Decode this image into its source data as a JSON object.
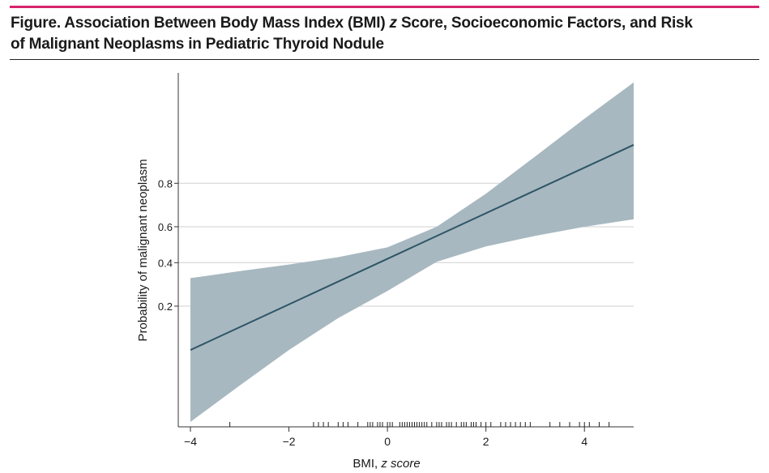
{
  "header": {
    "title_prefix": "Figure. Association Between Body Mass Index (BMI) ",
    "title_italic": "z",
    "title_suffix_line1": " Score, Socioeconomic Factors, and Risk",
    "title_line2": "of Malignant Neoplasms in Pediatric Thyroid Nodule"
  },
  "colors": {
    "accent_rule": "#d6246e",
    "band": "#a8b8c0",
    "line": "#2d5566",
    "grid": "#d0d0d0"
  },
  "chart_data": {
    "type": "line",
    "xlabel_prefix": "BMI, ",
    "xlabel_italic": "z score",
    "ylabel": "Probability of malignant neoplasm",
    "x_ticks": [
      -4,
      -2,
      0,
      2,
      4
    ],
    "x_tick_labels": [
      "−4",
      "−2",
      "0",
      "2",
      "4"
    ],
    "y_ticks": [
      0.2,
      0.4,
      0.6,
      0.8
    ],
    "y_tick_labels": [
      "0.2",
      "0.4",
      "0.6",
      "0.8"
    ],
    "xlim": [
      -4.2,
      5
    ],
    "ylim": [
      0,
      1
    ],
    "y_scale": "logit",
    "grid": "horizontal",
    "fit_line": {
      "x": [
        -4,
        5
      ],
      "y": [
        0.085,
        0.905
      ]
    },
    "ci_band": {
      "x": [
        -4,
        -3,
        -2,
        -1,
        0,
        1,
        2,
        3,
        4,
        5
      ],
      "upper": [
        0.32,
        0.355,
        0.39,
        0.43,
        0.485,
        0.6,
        0.76,
        0.88,
        0.945,
        0.975
      ],
      "lower": [
        0.018,
        0.04,
        0.085,
        0.16,
        0.26,
        0.405,
        0.49,
        0.55,
        0.6,
        0.64
      ]
    },
    "rug": [
      -3.2,
      -1.5,
      -1.4,
      -1.3,
      -1.2,
      -1.0,
      -0.9,
      -0.8,
      -0.6,
      -0.4,
      -0.35,
      -0.3,
      -0.2,
      -0.15,
      -0.1,
      0.0,
      0.05,
      0.1,
      0.25,
      0.3,
      0.35,
      0.4,
      0.45,
      0.5,
      0.55,
      0.6,
      0.65,
      0.7,
      0.75,
      0.8,
      0.9,
      1.0,
      1.05,
      1.1,
      1.2,
      1.25,
      1.3,
      1.4,
      1.5,
      1.55,
      1.6,
      1.7,
      1.75,
      1.8,
      1.9,
      2.0,
      2.1,
      2.3,
      2.4,
      2.5,
      2.6,
      2.7,
      2.8,
      2.9,
      3.3,
      3.5,
      3.7,
      3.9,
      4.0,
      4.1,
      4.3,
      4.5
    ]
  }
}
